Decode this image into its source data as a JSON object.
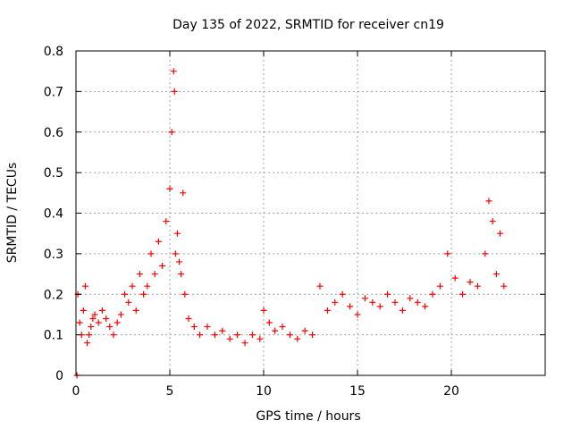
{
  "chart_data": {
    "type": "scatter",
    "title": "Day 135 of 2022, SRMTID for receiver cn19",
    "xlabel": "GPS time / hours",
    "ylabel": "SRMTID / TECUs",
    "xlim": [
      0,
      25
    ],
    "ylim": [
      0,
      0.8
    ],
    "xticks": [
      0,
      5,
      10,
      15,
      20
    ],
    "yticks": [
      0,
      0.1,
      0.2,
      0.3,
      0.4,
      0.5,
      0.6,
      0.7,
      0.8
    ],
    "xtick_labels": [
      "0",
      "5",
      "10",
      "15",
      "20"
    ],
    "ytick_labels": [
      "0",
      "0.1",
      "0.2",
      "0.3",
      "0.4",
      "0.5",
      "0.6",
      "0.7",
      "0.8"
    ],
    "grid": true,
    "marker": "plus",
    "series": [
      {
        "name": "cn19",
        "color": "#ff0000",
        "x": [
          0.05,
          0.1,
          0.2,
          0.3,
          0.4,
          0.5,
          0.6,
          0.7,
          0.8,
          0.9,
          1.0,
          1.2,
          1.4,
          1.6,
          1.8,
          2.0,
          2.2,
          2.4,
          2.6,
          2.8,
          3.0,
          3.2,
          3.4,
          3.6,
          3.8,
          4.0,
          4.2,
          4.4,
          4.6,
          4.8,
          5.0,
          5.1,
          5.2,
          5.25,
          5.3,
          5.4,
          5.5,
          5.6,
          5.7,
          5.8,
          6.0,
          6.3,
          6.6,
          7.0,
          7.4,
          7.8,
          8.2,
          8.6,
          9.0,
          9.4,
          9.8,
          10.0,
          10.3,
          10.6,
          11.0,
          11.4,
          11.8,
          12.2,
          12.6,
          13.0,
          13.4,
          13.8,
          14.2,
          14.6,
          15.0,
          15.4,
          15.8,
          16.2,
          16.6,
          17.0,
          17.4,
          17.8,
          18.2,
          18.6,
          19.0,
          19.4,
          19.8,
          20.2,
          20.6,
          21.0,
          21.4,
          21.8,
          22.0,
          22.2,
          22.4,
          22.6,
          22.8
        ],
        "y": [
          0.0,
          0.2,
          0.13,
          0.1,
          0.16,
          0.22,
          0.08,
          0.1,
          0.12,
          0.14,
          0.15,
          0.13,
          0.16,
          0.14,
          0.12,
          0.1,
          0.13,
          0.15,
          0.2,
          0.18,
          0.22,
          0.16,
          0.25,
          0.2,
          0.22,
          0.3,
          0.25,
          0.33,
          0.27,
          0.38,
          0.46,
          0.6,
          0.75,
          0.7,
          0.3,
          0.35,
          0.28,
          0.25,
          0.45,
          0.2,
          0.14,
          0.12,
          0.1,
          0.12,
          0.1,
          0.11,
          0.09,
          0.1,
          0.08,
          0.1,
          0.09,
          0.16,
          0.13,
          0.11,
          0.12,
          0.1,
          0.09,
          0.11,
          0.1,
          0.22,
          0.16,
          0.18,
          0.2,
          0.17,
          0.15,
          0.19,
          0.18,
          0.17,
          0.2,
          0.18,
          0.16,
          0.19,
          0.18,
          0.17,
          0.2,
          0.22,
          0.3,
          0.24,
          0.2,
          0.23,
          0.22,
          0.3,
          0.43,
          0.38,
          0.25,
          0.35,
          0.22
        ]
      }
    ]
  }
}
